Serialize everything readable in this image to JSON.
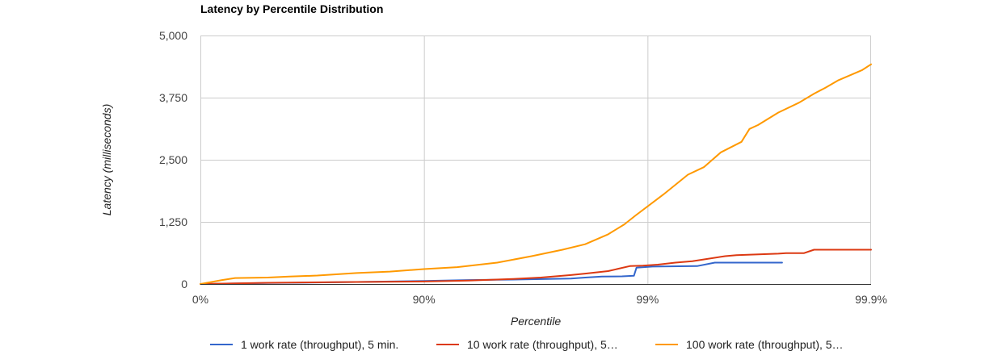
{
  "chart_data": {
    "type": "line",
    "title": "Latency by Percentile Distribution",
    "xlabel": "Percentile",
    "ylabel": "Latency (milliseconds)",
    "x_scale": "log-percentile",
    "x_ticks": [
      "0%",
      "90%",
      "99%",
      "99.9%"
    ],
    "y_ticks": [
      "0",
      "1,250",
      "2,500",
      "3,750",
      "5,000"
    ],
    "ylim": [
      0,
      5000
    ],
    "grid": true,
    "legend_position": "bottom",
    "series": [
      {
        "name": "1 work rate (throughput), 5 min.",
        "color": "#3366cc",
        "points": [
          [
            0,
            0
          ],
          [
            50,
            20
          ],
          [
            80,
            40
          ],
          [
            90,
            60
          ],
          [
            93.7,
            80
          ],
          [
            96,
            90
          ],
          [
            97.8,
            110
          ],
          [
            98.1,
            130
          ],
          [
            98.4,
            150
          ],
          [
            98.7,
            155
          ],
          [
            98.85,
            165
          ],
          [
            98.88,
            330
          ],
          [
            99.05,
            350
          ],
          [
            99.4,
            360
          ],
          [
            99.5,
            430
          ],
          [
            99.75,
            430
          ]
        ]
      },
      {
        "name": "10 work rate (throughput), 5…",
        "color": "#dc3912",
        "points": [
          [
            0,
            0
          ],
          [
            50,
            25
          ],
          [
            80,
            40
          ],
          [
            90,
            50
          ],
          [
            93.7,
            70
          ],
          [
            96,
            100
          ],
          [
            97,
            130
          ],
          [
            97.8,
            180
          ],
          [
            98.1,
            210
          ],
          [
            98.5,
            260
          ],
          [
            98.8,
            360
          ],
          [
            98.95,
            370
          ],
          [
            99.1,
            390
          ],
          [
            99.25,
            430
          ],
          [
            99.37,
            460
          ],
          [
            99.55,
            560
          ],
          [
            99.6,
            580
          ],
          [
            99.74,
            610
          ],
          [
            99.76,
            620
          ],
          [
            99.8,
            620
          ],
          [
            99.82,
            690
          ],
          [
            99.9,
            690
          ]
        ]
      },
      {
        "name": "100 work rate (throughput), 5…",
        "color": "#ff9900",
        "points": [
          [
            0,
            0
          ],
          [
            20,
            80
          ],
          [
            30,
            120
          ],
          [
            50,
            130
          ],
          [
            60,
            150
          ],
          [
            70,
            170
          ],
          [
            80,
            220
          ],
          [
            85.8,
            250
          ],
          [
            90,
            300
          ],
          [
            92.9,
            340
          ],
          [
            95.3,
            430
          ],
          [
            96.7,
            560
          ],
          [
            97.6,
            690
          ],
          [
            98.1,
            800
          ],
          [
            98.5,
            1000
          ],
          [
            98.73,
            1200
          ],
          [
            98.87,
            1380
          ],
          [
            99.15,
            1800
          ],
          [
            99.34,
            2200
          ],
          [
            99.44,
            2350
          ],
          [
            99.53,
            2650
          ],
          [
            99.62,
            2860
          ],
          [
            99.65,
            3120
          ],
          [
            99.68,
            3200
          ],
          [
            99.74,
            3450
          ],
          [
            99.79,
            3650
          ],
          [
            99.82,
            3830
          ],
          [
            99.84,
            3950
          ],
          [
            99.86,
            4100
          ],
          [
            99.89,
            4300
          ],
          [
            99.9,
            4420
          ]
        ]
      }
    ]
  }
}
